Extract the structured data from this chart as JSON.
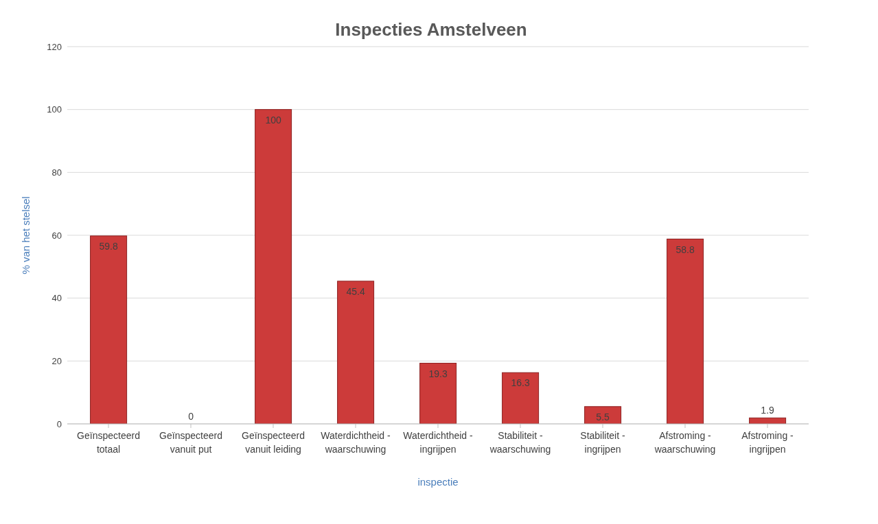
{
  "chart_data": {
    "type": "bar",
    "title": "Inspecties Amstelveen",
    "xlabel": "inspectie",
    "ylabel": "% van het stelsel",
    "categories": [
      "Geïnspecteerd totaal",
      "Geïnspecteerd vanuit put",
      "Geïnspecteerd vanuit leiding",
      "Waterdichtheid - waarschuwing",
      "Waterdichtheid - ingrijpen",
      "Stabiliteit - waarschuwing",
      "Stabiliteit - ingrijpen",
      "Afstroming - waarschuwing",
      "Afstroming - ingrijpen"
    ],
    "values": [
      59.8,
      0,
      100,
      45.4,
      19.3,
      16.3,
      5.5,
      58.8,
      1.9
    ],
    "color": "#cc3b3a",
    "ylim": [
      0,
      120
    ],
    "yticks": [
      0,
      20,
      40,
      60,
      80,
      100,
      120
    ],
    "grid": "y",
    "data_labels": true
  }
}
